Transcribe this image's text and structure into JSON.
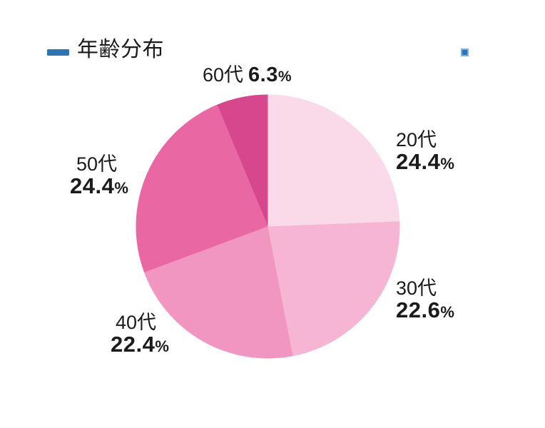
{
  "header": {
    "title": "年齢分布"
  },
  "accent_color": "#2e74b5",
  "text_color": "#1b1b1b",
  "chart_data": {
    "type": "pie",
    "title": "年齢分布",
    "unit": "%",
    "start_angle": "top",
    "direction": "clockwise",
    "legend_position": "labels-around-pie",
    "slices": [
      {
        "label": "20代",
        "value": 24.4,
        "color": "#fadae8"
      },
      {
        "label": "30代",
        "value": 22.6,
        "color": "#f6b6d3"
      },
      {
        "label": "40代",
        "value": 22.4,
        "color": "#f096c0"
      },
      {
        "label": "50代",
        "value": 24.4,
        "color": "#e968a3"
      },
      {
        "label": "60代",
        "value": 6.3,
        "color": "#d6478e"
      }
    ]
  }
}
